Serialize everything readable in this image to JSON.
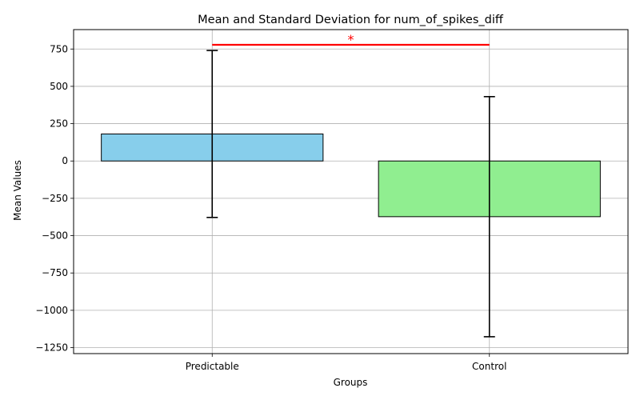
{
  "chart_data": {
    "type": "bar",
    "title": "Mean and Standard Deviation for num_of_spikes_diff",
    "xlabel": "Groups",
    "ylabel": "Mean Values",
    "categories": [
      "Predictable",
      "Control"
    ],
    "values": [
      181,
      -373
    ],
    "error": [
      559,
      804
    ],
    "bar_colors": [
      "#87ceeb",
      "#90ee90"
    ],
    "ylim": [
      -1290,
      880
    ],
    "yticks": [
      750,
      500,
      250,
      0,
      -250,
      -500,
      -750,
      -1000,
      -1250
    ],
    "ytick_labels": [
      "750",
      "500",
      "250",
      "0",
      "−250",
      "−500",
      "−750",
      "−1000",
      "−1250"
    ],
    "grid": true,
    "significance": {
      "from": "Predictable",
      "to": "Control",
      "y": 778,
      "label": "*",
      "color": "#ff0000"
    }
  }
}
